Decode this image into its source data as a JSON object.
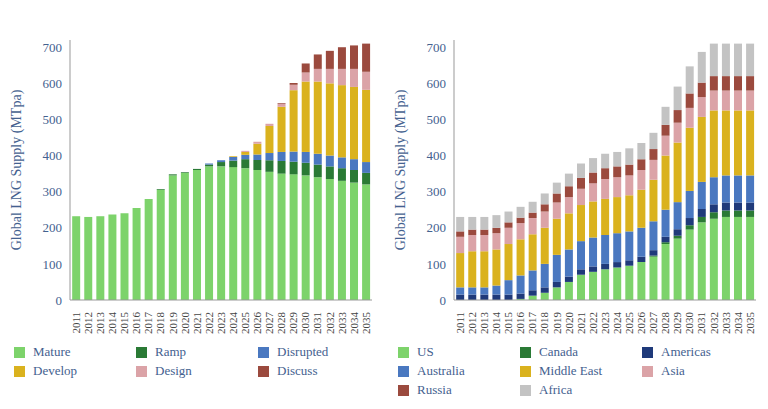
{
  "chart_data": [
    {
      "type": "bar",
      "stacked": true,
      "legend": "bottom",
      "y_label": "Global LNG Supply (MTpa)",
      "categories": [
        "2011",
        "2012",
        "2013",
        "2014",
        "2015",
        "2016",
        "2017",
        "2018",
        "2019",
        "2020",
        "2021",
        "2022",
        "2023",
        "2024",
        "2025",
        "2026",
        "2027",
        "2028",
        "2029",
        "2030",
        "2031",
        "2032",
        "2033",
        "2034",
        "2035"
      ],
      "ylim": [
        0,
        720
      ],
      "yticks": [
        0,
        100,
        200,
        300,
        400,
        500,
        600,
        700
      ],
      "series": [
        {
          "name": "Mature",
          "color": "#7dd36b",
          "values": [
            232,
            230,
            232,
            237,
            240,
            255,
            280,
            305,
            345,
            352,
            360,
            370,
            370,
            368,
            365,
            360,
            355,
            350,
            348,
            345,
            340,
            335,
            330,
            325,
            320
          ]
        },
        {
          "name": "Ramp",
          "color": "#2a7a35",
          "values": [
            0,
            0,
            0,
            0,
            0,
            0,
            0,
            2,
            3,
            2,
            3,
            5,
            12,
            18,
            25,
            28,
            32,
            35,
            35,
            35,
            35,
            35,
            35,
            35,
            32
          ]
        },
        {
          "name": "Disrupted",
          "color": "#4a78c0",
          "values": [
            0,
            0,
            0,
            0,
            0,
            0,
            0,
            0,
            0,
            0,
            0,
            3,
            5,
            10,
            12,
            15,
            20,
            25,
            28,
            30,
            30,
            30,
            30,
            30,
            30
          ]
        },
        {
          "name": "Develop",
          "color": "#dab21e",
          "values": [
            0,
            0,
            0,
            0,
            0,
            0,
            0,
            0,
            0,
            0,
            0,
            0,
            0,
            2,
            8,
            30,
            75,
            125,
            170,
            195,
            200,
            200,
            200,
            200,
            200
          ]
        },
        {
          "name": "Design",
          "color": "#dba3a7",
          "values": [
            0,
            0,
            0,
            0,
            0,
            0,
            0,
            0,
            0,
            0,
            0,
            0,
            0,
            0,
            3,
            5,
            6,
            8,
            15,
            25,
            35,
            40,
            45,
            50,
            50
          ]
        },
        {
          "name": "Discuss",
          "color": "#9b4a3e",
          "values": [
            0,
            0,
            0,
            0,
            0,
            0,
            0,
            0,
            0,
            0,
            0,
            0,
            0,
            0,
            0,
            0,
            0,
            2,
            5,
            25,
            40,
            50,
            60,
            65,
            78
          ]
        }
      ]
    },
    {
      "type": "bar",
      "stacked": true,
      "legend": "bottom",
      "y_label": "Global LNG Supply (MTpa)",
      "categories": [
        "2011",
        "2012",
        "2013",
        "2014",
        "2015",
        "2016",
        "2017",
        "2018",
        "2019",
        "2020",
        "2021",
        "2022",
        "2023",
        "2024",
        "2025",
        "2026",
        "2027",
        "2028",
        "2029",
        "2030",
        "2031",
        "2032",
        "2033",
        "2034",
        "2035"
      ],
      "ylim": [
        0,
        720
      ],
      "yticks": [
        0,
        100,
        200,
        300,
        400,
        500,
        600,
        700
      ],
      "series": [
        {
          "name": "US",
          "color": "#7dd36b",
          "values": [
            0,
            0,
            0,
            0,
            0,
            3,
            12,
            20,
            35,
            50,
            70,
            78,
            85,
            90,
            95,
            105,
            120,
            155,
            170,
            195,
            215,
            225,
            230,
            230,
            230
          ]
        },
        {
          "name": "Canada",
          "color": "#2a7a35",
          "values": [
            0,
            0,
            0,
            0,
            0,
            0,
            0,
            0,
            0,
            0,
            0,
            0,
            0,
            0,
            0,
            0,
            3,
            5,
            8,
            12,
            15,
            18,
            18,
            18,
            18
          ]
        },
        {
          "name": "Americas",
          "color": "#1f3a7a",
          "values": [
            15,
            15,
            15,
            15,
            15,
            15,
            15,
            15,
            15,
            15,
            15,
            15,
            15,
            15,
            15,
            15,
            15,
            15,
            18,
            20,
            22,
            22,
            22,
            22,
            22
          ]
        },
        {
          "name": "Australia",
          "color": "#4a78c0",
          "values": [
            20,
            20,
            20,
            25,
            40,
            50,
            55,
            65,
            75,
            75,
            78,
            80,
            80,
            80,
            80,
            80,
            80,
            75,
            75,
            75,
            75,
            75,
            75,
            75,
            75
          ]
        },
        {
          "name": "Middle East",
          "color": "#dab21e",
          "values": [
            95,
            100,
            100,
            100,
            100,
            100,
            100,
            100,
            100,
            100,
            100,
            100,
            100,
            100,
            100,
            105,
            115,
            150,
            165,
            175,
            180,
            185,
            180,
            180,
            180
          ]
        },
        {
          "name": "Asia",
          "color": "#dba3a7",
          "values": [
            45,
            45,
            45,
            45,
            45,
            45,
            45,
            45,
            45,
            45,
            45,
            50,
            55,
            55,
            55,
            55,
            55,
            55,
            55,
            55,
            55,
            55,
            55,
            55,
            55
          ]
        },
        {
          "name": "Russia",
          "color": "#9b4a3e",
          "values": [
            15,
            15,
            15,
            15,
            15,
            15,
            15,
            20,
            25,
            30,
            30,
            30,
            30,
            30,
            30,
            30,
            30,
            30,
            35,
            40,
            40,
            40,
            40,
            40,
            40
          ]
        },
        {
          "name": "Africa",
          "color": "#c3c3c3",
          "values": [
            40,
            35,
            35,
            35,
            30,
            30,
            30,
            30,
            30,
            35,
            40,
            40,
            40,
            40,
            45,
            45,
            45,
            50,
            65,
            75,
            85,
            90,
            90,
            90,
            90
          ]
        }
      ]
    }
  ]
}
